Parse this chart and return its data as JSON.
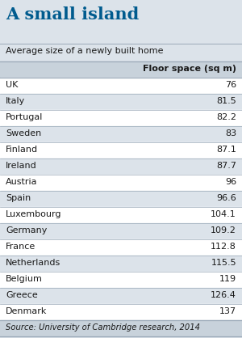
{
  "title": "A small island",
  "subtitle": "Average size of a newly built home",
  "col_header": "Floor space (sq m)",
  "countries": [
    "UK",
    "Italy",
    "Portugal",
    "Sweden",
    "Finland",
    "Ireland",
    "Austria",
    "Spain",
    "Luxembourg",
    "Germany",
    "France",
    "Netherlands",
    "Belgium",
    "Greece",
    "Denmark"
  ],
  "values": [
    "76",
    "81.5",
    "82.2",
    "83",
    "87.1",
    "87.7",
    "96",
    "96.6",
    "104.1",
    "109.2",
    "112.8",
    "115.5",
    "119",
    "126.4",
    "137"
  ],
  "source": "Source: University of Cambridge research, 2014",
  "title_color": "#005b8e",
  "fig_bg": "#dce3ea",
  "row_bg_light": "#dce3ea",
  "row_bg_white": "#ffffff",
  "header_bg": "#c8d2db",
  "source_bg": "#c8d2db",
  "text_color": "#1a1a1a",
  "line_color": "#9baab8",
  "title_fontsize": 15,
  "subtitle_fontsize": 8.0,
  "header_fontsize": 8.0,
  "row_fontsize": 8.0,
  "source_fontsize": 7.2
}
